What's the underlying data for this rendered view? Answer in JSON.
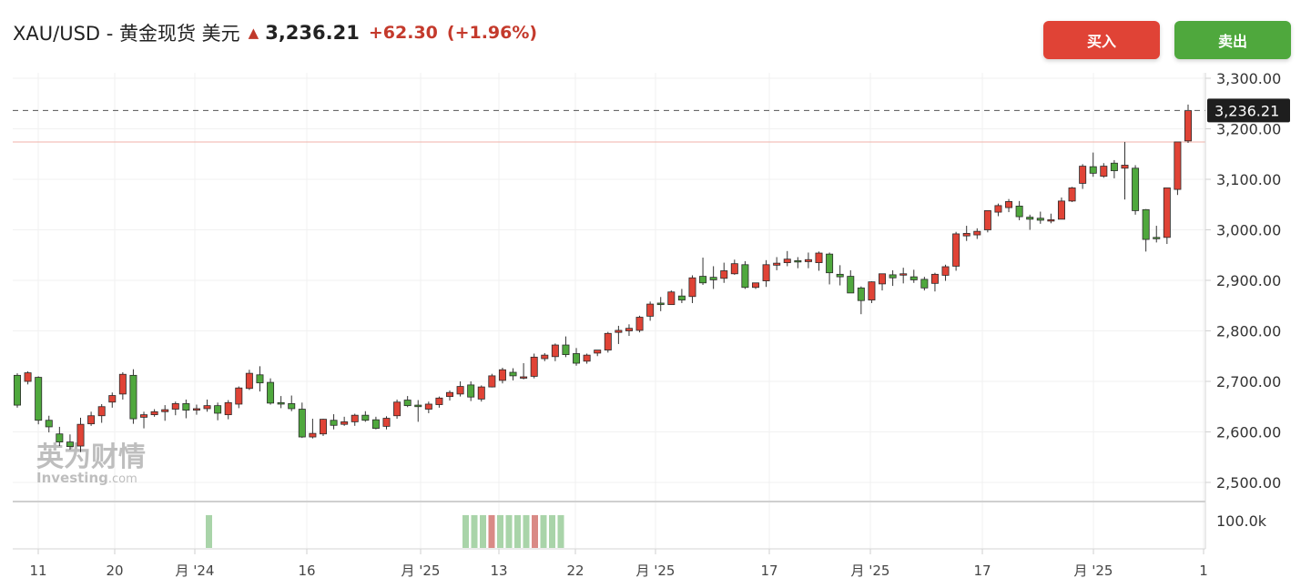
{
  "header": {
    "symbol": "XAU/USD - 黄金现货 美元",
    "arrow_icon": "up-triangle-icon",
    "price": "3,236.21",
    "change": "+62.30",
    "change_pct": "(+1.96%)"
  },
  "buttons": {
    "buy": "买入",
    "sell": "卖出"
  },
  "watermark": {
    "cn": "英为财情",
    "en_brand": "Investing",
    "en_suffix": ".com"
  },
  "colors": {
    "up": "#e04336",
    "down": "#4fa83d",
    "vol_up": "#a9d4a9",
    "vol_down": "#d98a86"
  },
  "chart_data": {
    "type": "candlestick",
    "ylim": [
      2450,
      3330
    ],
    "y_ticks": [
      "2,500.00",
      "2,600.00",
      "2,700.00",
      "2,800.00",
      "2,900.00",
      "3,000.00",
      "3,100.00",
      "3,200.00",
      "3,300.00"
    ],
    "y_tick_values": [
      2500,
      2600,
      2700,
      2800,
      2900,
      3000,
      3100,
      3200,
      3300
    ],
    "last_price_label": "3,236.21",
    "last_price": 3236.21,
    "prev_close": 3173.9,
    "x_tick_labels": [
      "11",
      "20",
      "月 '24",
      "16",
      "月 '25",
      "13",
      "22",
      "月 '25",
      "17",
      "月 '25",
      "17",
      "月 '25",
      "1"
    ],
    "volume_axis_label": "100.0k",
    "candles": [
      [
        2716,
        2648,
        2712,
        2653
      ],
      [
        2720,
        2694,
        2700,
        2717
      ],
      [
        2710,
        2615,
        2708,
        2623
      ],
      [
        2632,
        2599,
        2623,
        2610
      ],
      [
        2610,
        2572,
        2596,
        2580
      ],
      [
        2595,
        2565,
        2580,
        2571
      ],
      [
        2628,
        2560,
        2572,
        2615
      ],
      [
        2640,
        2612,
        2616,
        2632
      ],
      [
        2655,
        2618,
        2632,
        2650
      ],
      [
        2678,
        2648,
        2659,
        2672
      ],
      [
        2718,
        2664,
        2675,
        2714
      ],
      [
        2724,
        2616,
        2712,
        2626
      ],
      [
        2640,
        2607,
        2629,
        2634
      ],
      [
        2645,
        2630,
        2634,
        2640
      ],
      [
        2653,
        2622,
        2640,
        2644
      ],
      [
        2660,
        2633,
        2645,
        2656
      ],
      [
        2664,
        2627,
        2656,
        2643
      ],
      [
        2654,
        2634,
        2643,
        2646
      ],
      [
        2664,
        2640,
        2646,
        2652
      ],
      [
        2658,
        2623,
        2652,
        2637
      ],
      [
        2663,
        2625,
        2634,
        2658
      ],
      [
        2690,
        2647,
        2655,
        2687
      ],
      [
        2723,
        2683,
        2686,
        2716
      ],
      [
        2730,
        2680,
        2713,
        2697
      ],
      [
        2706,
        2654,
        2698,
        2657
      ],
      [
        2671,
        2647,
        2658,
        2655
      ],
      [
        2672,
        2641,
        2656,
        2646
      ],
      [
        2658,
        2588,
        2645,
        2590
      ],
      [
        2626,
        2587,
        2590,
        2597
      ],
      [
        2626,
        2592,
        2596,
        2625
      ],
      [
        2635,
        2605,
        2623,
        2613
      ],
      [
        2630,
        2612,
        2615,
        2620
      ],
      [
        2636,
        2612,
        2620,
        2633
      ],
      [
        2641,
        2620,
        2633,
        2623
      ],
      [
        2630,
        2605,
        2624,
        2607
      ],
      [
        2631,
        2605,
        2611,
        2627
      ],
      [
        2664,
        2626,
        2632,
        2659
      ],
      [
        2671,
        2649,
        2663,
        2652
      ],
      [
        2663,
        2620,
        2653,
        2650
      ],
      [
        2660,
        2637,
        2645,
        2655
      ],
      [
        2670,
        2648,
        2654,
        2667
      ],
      [
        2682,
        2662,
        2670,
        2678
      ],
      [
        2700,
        2670,
        2675,
        2690
      ],
      [
        2700,
        2661,
        2693,
        2669
      ],
      [
        2692,
        2660,
        2665,
        2689
      ],
      [
        2715,
        2688,
        2689,
        2711
      ],
      [
        2727,
        2696,
        2702,
        2723
      ],
      [
        2726,
        2702,
        2718,
        2711
      ],
      [
        2736,
        2704,
        2708,
        2709
      ],
      [
        2755,
        2706,
        2710,
        2748
      ],
      [
        2756,
        2740,
        2745,
        2752
      ],
      [
        2775,
        2740,
        2749,
        2772
      ],
      [
        2789,
        2748,
        2772,
        2753
      ],
      [
        2766,
        2731,
        2755,
        2736
      ],
      [
        2755,
        2735,
        2740,
        2752
      ],
      [
        2761,
        2750,
        2756,
        2762
      ],
      [
        2798,
        2757,
        2762,
        2795
      ],
      [
        2810,
        2774,
        2797,
        2801
      ],
      [
        2813,
        2790,
        2800,
        2805
      ],
      [
        2830,
        2797,
        2801,
        2827
      ],
      [
        2858,
        2820,
        2829,
        2853
      ],
      [
        2867,
        2839,
        2855,
        2852
      ],
      [
        2880,
        2852,
        2852,
        2877
      ],
      [
        2883,
        2855,
        2869,
        2861
      ],
      [
        2910,
        2855,
        2868,
        2905
      ],
      [
        2945,
        2891,
        2908,
        2895
      ],
      [
        2928,
        2883,
        2906,
        2901
      ],
      [
        2935,
        2895,
        2904,
        2919
      ],
      [
        2941,
        2911,
        2913,
        2933
      ],
      [
        2938,
        2883,
        2931,
        2886
      ],
      [
        2895,
        2883,
        2886,
        2895
      ],
      [
        2940,
        2887,
        2899,
        2931
      ],
      [
        2946,
        2920,
        2930,
        2934
      ],
      [
        2958,
        2928,
        2935,
        2942
      ],
      [
        2946,
        2924,
        2939,
        2937
      ],
      [
        2955,
        2924,
        2937,
        2941
      ],
      [
        2957,
        2919,
        2935,
        2954
      ],
      [
        2955,
        2892,
        2952,
        2915
      ],
      [
        2930,
        2890,
        2912,
        2907
      ],
      [
        2920,
        2878,
        2908,
        2875
      ],
      [
        2888,
        2833,
        2885,
        2860
      ],
      [
        2898,
        2855,
        2861,
        2897
      ],
      [
        2912,
        2880,
        2893,
        2913
      ],
      [
        2920,
        2889,
        2911,
        2905
      ],
      [
        2925,
        2894,
        2912,
        2913
      ],
      [
        2921,
        2895,
        2907,
        2901
      ],
      [
        2907,
        2880,
        2902,
        2885
      ],
      [
        2915,
        2878,
        2894,
        2912
      ],
      [
        2931,
        2899,
        2910,
        2927
      ],
      [
        2996,
        2919,
        2928,
        2992
      ],
      [
        3008,
        2978,
        2988,
        2993
      ],
      [
        3003,
        2982,
        2990,
        2997
      ],
      [
        3031,
        2995,
        3000,
        3038
      ],
      [
        3052,
        3027,
        3035,
        3048
      ],
      [
        3061,
        3035,
        3044,
        3056
      ],
      [
        3057,
        3019,
        3047,
        3026
      ],
      [
        3030,
        3000,
        3025,
        3021
      ],
      [
        3036,
        3012,
        3023,
        3019
      ],
      [
        3032,
        3013,
        3018,
        3020
      ],
      [
        3064,
        3021,
        3021,
        3057
      ],
      [
        3085,
        3055,
        3057,
        3083
      ],
      [
        3130,
        3081,
        3092,
        3126
      ],
      [
        3153,
        3105,
        3125,
        3112
      ],
      [
        3132,
        3103,
        3106,
        3126
      ],
      [
        3138,
        3102,
        3132,
        3117
      ],
      [
        3174,
        3060,
        3122,
        3128
      ],
      [
        3128,
        3030,
        3122,
        3038
      ],
      [
        3041,
        2957,
        3040,
        2981
      ],
      [
        3008,
        2975,
        2985,
        2984
      ],
      [
        3008,
        2972,
        2985,
        3083
      ],
      [
        3107,
        3069,
        3080,
        3174
      ],
      [
        3248,
        3172,
        3176,
        3236
      ]
    ],
    "volume": [
      {
        "index": 17,
        "dir": "up",
        "value": 82000
      },
      {
        "index": 41,
        "dir": "up",
        "value": 82000
      },
      {
        "index": 42,
        "dir": "up",
        "value": 82000
      },
      {
        "index": 43,
        "dir": "up",
        "value": 82000
      },
      {
        "index": 44,
        "dir": "down",
        "value": 82000
      },
      {
        "index": 45,
        "dir": "up",
        "value": 82000
      },
      {
        "index": 46,
        "dir": "up",
        "value": 82000
      },
      {
        "index": 47,
        "dir": "up",
        "value": 82000
      },
      {
        "index": 48,
        "dir": "up",
        "value": 82000
      },
      {
        "index": 49,
        "dir": "down",
        "value": 82000
      },
      {
        "index": 50,
        "dir": "up",
        "value": 82000
      },
      {
        "index": 51,
        "dir": "up",
        "value": 82000
      },
      {
        "index": 52,
        "dir": "up",
        "value": 82000
      }
    ],
    "volume_ylim": [
      0,
      100000
    ],
    "grid": true
  }
}
